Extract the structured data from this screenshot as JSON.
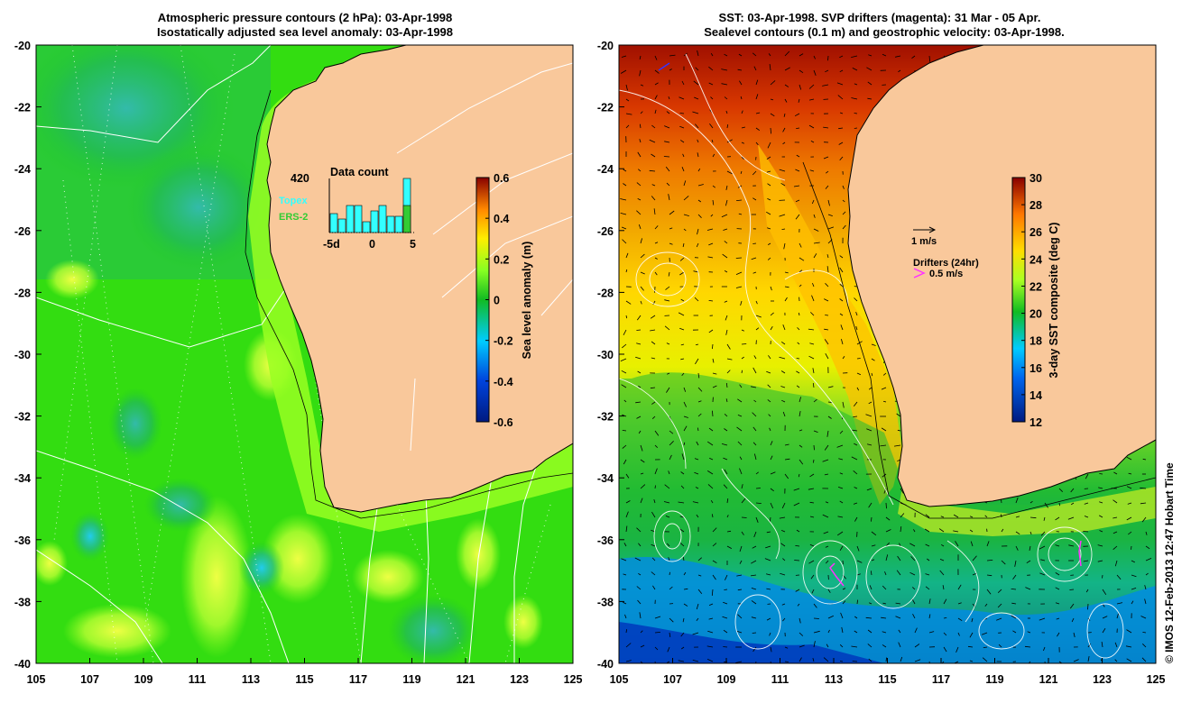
{
  "left_panel": {
    "title_line1": "Atmospheric pressure contours (2 hPa): 03-Apr-1998",
    "title_line2": "Isostatically adjusted sea level anomaly: 03-Apr-1998",
    "lat_ticks": [
      "-20",
      "-22",
      "-24",
      "-26",
      "-28",
      "-30",
      "-32",
      "-34",
      "-36",
      "-38",
      "-40"
    ],
    "lon_ticks": [
      "105",
      "107",
      "109",
      "111",
      "113",
      "115",
      "117",
      "119",
      "121",
      "123",
      "125"
    ],
    "colorbar": {
      "label": "Sea level anomaly (m)",
      "ticks": [
        "0.6",
        "0.4",
        "0.2",
        "0",
        "-0.2",
        "-0.4",
        "-0.6"
      ]
    },
    "data_count": {
      "title": "Data count",
      "max_label": "420",
      "topex_label": "Topex",
      "ers_label": "ERS-2",
      "x_ticks": [
        "-5d",
        "0",
        "5"
      ],
      "bars": [
        0.35,
        0.25,
        0.5,
        0.5,
        0.2,
        0.4,
        0.5,
        0.3,
        0.3,
        1.0
      ],
      "topex_color": "#33ffff",
      "ers_color": "#33cc33"
    }
  },
  "right_panel": {
    "title_line1": "SST: 03-Apr-1998. SVP drifters (magenta): 31 Mar - 05 Apr.",
    "title_line2": "Sealevel contours (0.1 m) and geostrophic velocity: 03-Apr-1998.",
    "lat_ticks": [
      "-20",
      "-22",
      "-24",
      "-26",
      "-28",
      "-30",
      "-32",
      "-34",
      "-36",
      "-38",
      "-40"
    ],
    "lon_ticks": [
      "105",
      "107",
      "109",
      "111",
      "113",
      "115",
      "117",
      "119",
      "121",
      "123",
      "125"
    ],
    "colorbar": {
      "label": "3-day SST composite (deg C)",
      "ticks": [
        "30",
        "28",
        "26",
        "24",
        "22",
        "20",
        "18",
        "16",
        "14",
        "12"
      ]
    },
    "velocity_legend": "1 m/s",
    "drifter_legend_title": "Drifters (24hr)",
    "drifter_legend_speed": "0.5 m/s",
    "drifter_color": "#ff33ff"
  },
  "copyright": "© IMOS 12-Feb-2013 12:47 Hobart Time",
  "colors": {
    "land": "#f9c89b",
    "sla_base": "#22dd00",
    "sla_high": "#bbff44",
    "sla_low": "#11aa66"
  }
}
